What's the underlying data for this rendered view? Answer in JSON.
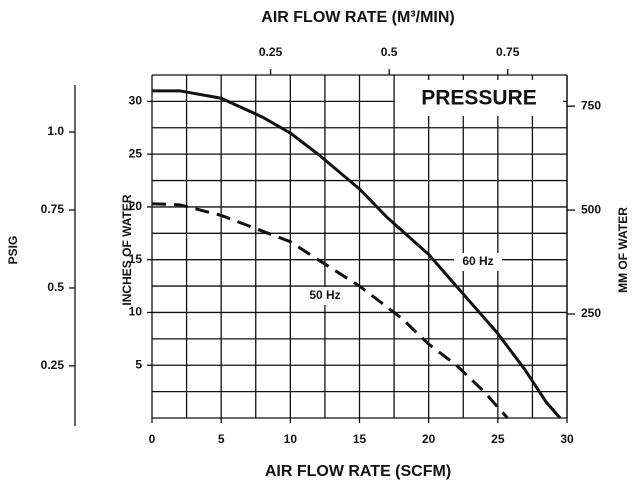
{
  "chart_data": {
    "type": "line",
    "title": "PRESSURE",
    "xlabel": "AIR FLOW RATE (SCFM)",
    "x2label": "AIR FLOW RATE (M³/MIN)",
    "ylabel": "INCHES OF WATER",
    "y2label": "MM OF WATER",
    "y3label": "PSIG",
    "xlim": [
      0,
      30
    ],
    "xticks": [
      0,
      5,
      10,
      15,
      20,
      25,
      30
    ],
    "xgrid": [
      0,
      2.5,
      5,
      7.5,
      10,
      12.5,
      15,
      17.5,
      20,
      22.5,
      25,
      27.5,
      30
    ],
    "x2lim": [
      0,
      0.875
    ],
    "x2ticks": [
      0.25,
      0.5,
      0.75
    ],
    "ylim": [
      0,
      32.5
    ],
    "yticks": [
      5,
      10,
      15,
      20,
      25,
      30
    ],
    "ygrid": [
      0,
      2.5,
      5,
      7.5,
      10,
      12.5,
      15,
      17.5,
      20,
      22.5,
      25,
      27.5,
      30,
      32.5
    ],
    "y2lim": [
      0,
      825
    ],
    "y2ticks": [
      250,
      500,
      750
    ],
    "y3lim": [
      0.083,
      1.183
    ],
    "y3ticks": [
      0.25,
      0.5,
      0.75,
      {
        "value": 1,
        "label": "1.0"
      }
    ],
    "series": [
      {
        "name": "60 Hz",
        "color": "#111111",
        "dashed": false,
        "x": [
          0,
          2,
          5,
          8,
          10,
          12,
          15,
          17,
          20,
          22,
          25,
          27,
          28.5,
          29.5
        ],
        "values": [
          31,
          31,
          30.3,
          28.5,
          27,
          25,
          21.7,
          19,
          15.5,
          12.5,
          8,
          4.5,
          1.5,
          0
        ]
      },
      {
        "name": "50 Hz",
        "color": "#111111",
        "dashed": true,
        "x": [
          0,
          2,
          5,
          8,
          10,
          12,
          15,
          18,
          20,
          22,
          24,
          25.7
        ],
        "values": [
          20.3,
          20.2,
          19.2,
          17.7,
          16.7,
          15,
          12.5,
          9.5,
          7,
          5,
          2.5,
          0
        ]
      }
    ]
  }
}
